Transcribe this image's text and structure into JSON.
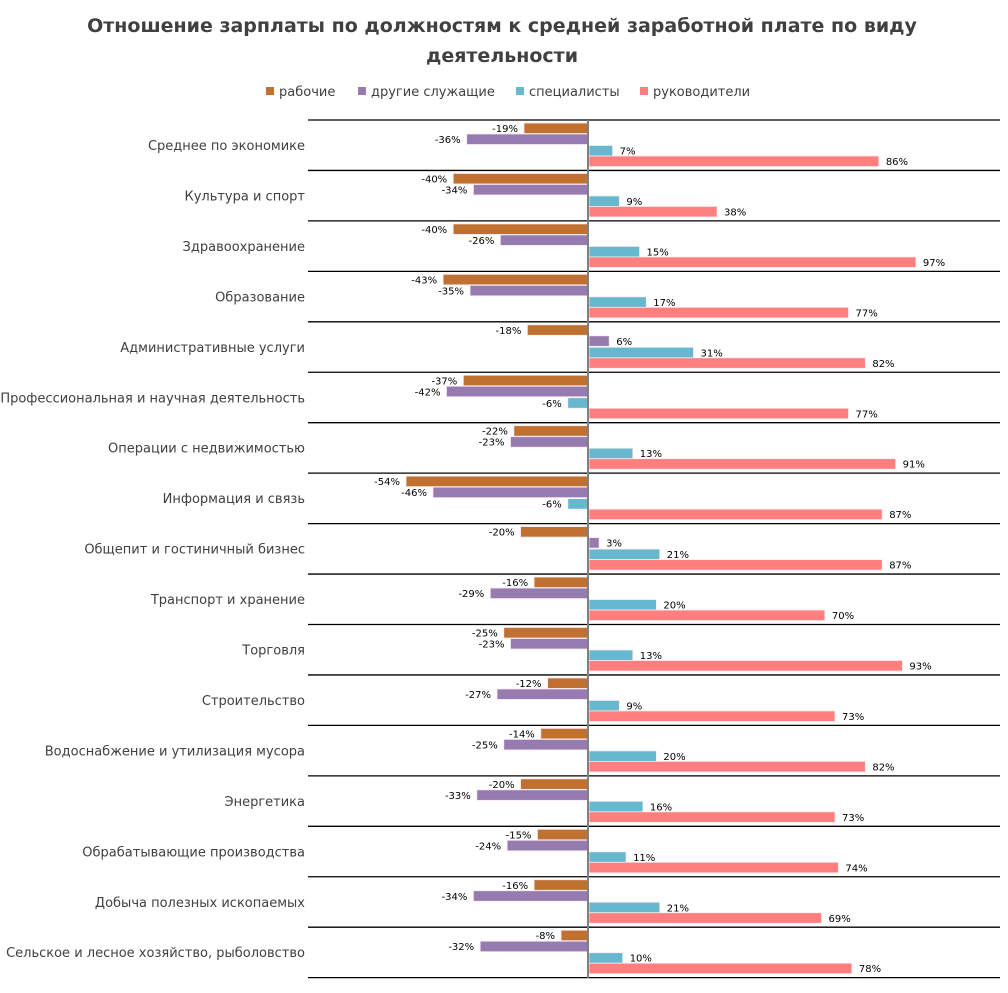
{
  "chart_data": {
    "type": "bar",
    "orientation": "horizontal",
    "title_lines": [
      "Отношение зарплаты по должностям к средней заработной плате по виду",
      "деятельности"
    ],
    "legend_position": "top",
    "grid": "horizontal separators between categories",
    "value_format": "percent",
    "xlim": [
      -60,
      110
    ],
    "categories": [
      "Среднее по экономике",
      "Культура и спорт",
      "Здравоохранение",
      "Образование",
      "Административные услуги",
      "Профессиональная и научная деятельность",
      "Операции с недвижимостью",
      "Информация и связь",
      "Общепит и гостиничный бизнес",
      "Транспорт и хранение",
      "Торговля",
      "Строительство",
      "Водоснабжение и утилизация мусора",
      "Энергетика",
      "Обрабатывающие производства",
      "Добыча полезных ископаемых",
      "Сельское и лесное хозяйство, рыболовство"
    ],
    "series": [
      {
        "name": "рабочие",
        "color": "#C0712F",
        "values": [
          -19,
          -40,
          -40,
          -43,
          -18,
          -37,
          -22,
          -54,
          -20,
          -16,
          -25,
          -12,
          -14,
          -20,
          -15,
          -16,
          -8
        ]
      },
      {
        "name": "другие служащие",
        "color": "#967BB0",
        "values": [
          -36,
          -34,
          -26,
          -35,
          6,
          -42,
          -23,
          -46,
          3,
          -29,
          -23,
          -27,
          -25,
          -33,
          -24,
          -34,
          -32
        ]
      },
      {
        "name": "специалисты",
        "color": "#65B8CE",
        "values": [
          7,
          9,
          15,
          17,
          31,
          -6,
          13,
          -6,
          21,
          20,
          13,
          9,
          20,
          16,
          11,
          21,
          10
        ]
      },
      {
        "name": "руководители",
        "color": "#FF7F7F",
        "values": [
          86,
          38,
          97,
          77,
          82,
          77,
          91,
          87,
          87,
          70,
          93,
          73,
          82,
          73,
          74,
          69,
          78
        ]
      }
    ]
  }
}
